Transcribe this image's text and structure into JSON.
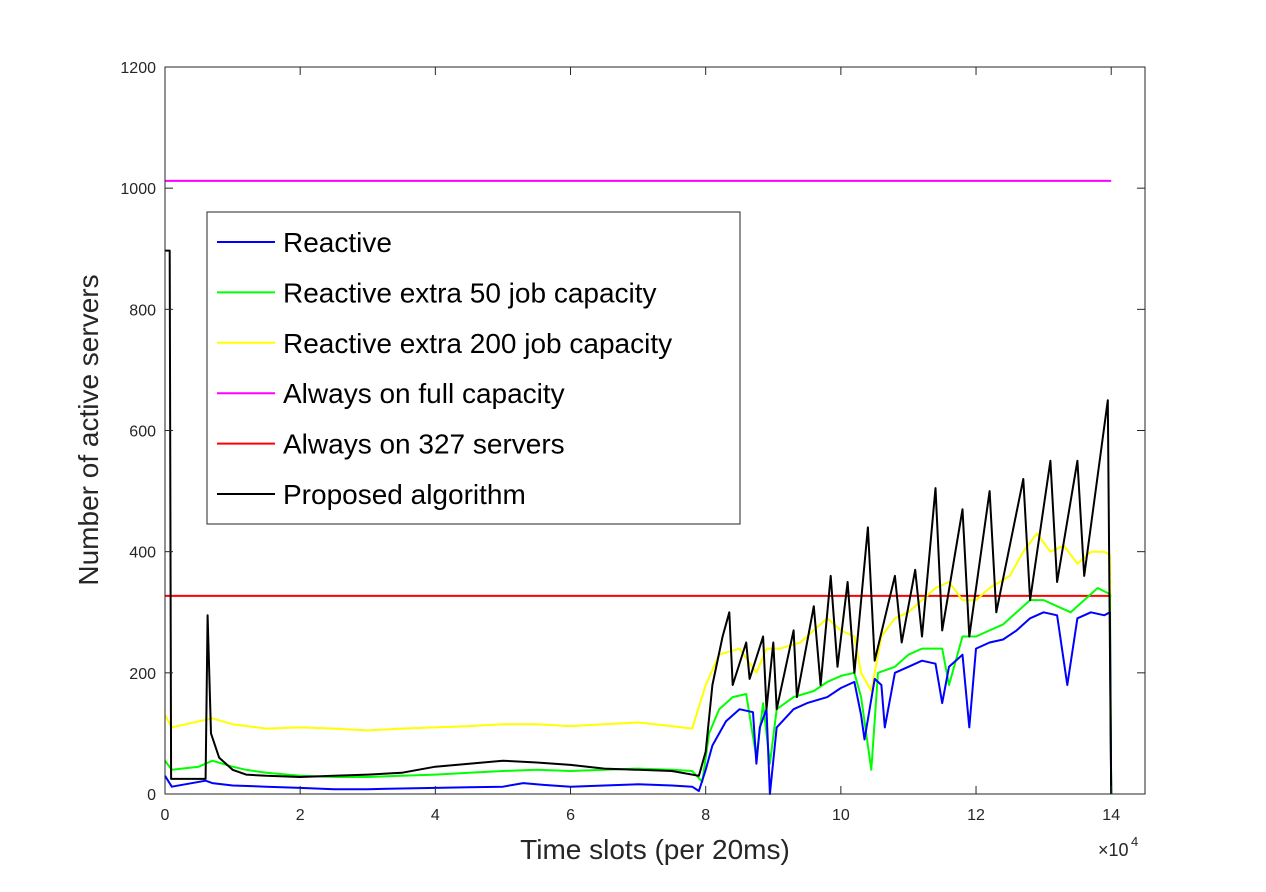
{
  "chart_data": {
    "type": "line",
    "title": "",
    "xlabel": "Time slots (per 20ms)",
    "ylabel": "Number of active servers",
    "x_multiplier_label": "×10",
    "x_multiplier_exp": "4",
    "xlim": [
      0,
      14.5
    ],
    "ylim": [
      0,
      1200
    ],
    "xticks": [
      0,
      2,
      4,
      6,
      8,
      10,
      12,
      14
    ],
    "xtick_labels": [
      "0",
      "2",
      "4",
      "6",
      "8",
      "10",
      "12",
      "14"
    ],
    "yticks": [
      0,
      200,
      400,
      600,
      800,
      1000,
      1200
    ],
    "ytick_labels": [
      "0",
      "200",
      "400",
      "600",
      "800",
      "1000",
      "1200"
    ],
    "grid": false,
    "legend_position": "top-left",
    "x_units_note": "x in units of 10^4 time slots",
    "series": [
      {
        "name": "Reactive",
        "color": "#0000ff",
        "points": [
          [
            0,
            30
          ],
          [
            0.1,
            12
          ],
          [
            0.6,
            22
          ],
          [
            0.7,
            18
          ],
          [
            1,
            14
          ],
          [
            1.5,
            12
          ],
          [
            2,
            10
          ],
          [
            2.5,
            8
          ],
          [
            3,
            8
          ],
          [
            3.5,
            9
          ],
          [
            4,
            10
          ],
          [
            4.5,
            11
          ],
          [
            5,
            12
          ],
          [
            5.3,
            18
          ],
          [
            5.6,
            15
          ],
          [
            6,
            12
          ],
          [
            6.5,
            14
          ],
          [
            7,
            16
          ],
          [
            7.5,
            14
          ],
          [
            7.8,
            12
          ],
          [
            7.9,
            5
          ],
          [
            8.0,
            40
          ],
          [
            8.1,
            80
          ],
          [
            8.3,
            120
          ],
          [
            8.5,
            140
          ],
          [
            8.7,
            135
          ],
          [
            8.75,
            50
          ],
          [
            8.8,
            110
          ],
          [
            8.9,
            140
          ],
          [
            8.95,
            0
          ],
          [
            9.05,
            110
          ],
          [
            9.3,
            140
          ],
          [
            9.5,
            150
          ],
          [
            9.8,
            160
          ],
          [
            10,
            175
          ],
          [
            10.2,
            185
          ],
          [
            10.3,
            130
          ],
          [
            10.35,
            90
          ],
          [
            10.5,
            190
          ],
          [
            10.6,
            180
          ],
          [
            10.65,
            110
          ],
          [
            10.8,
            200
          ],
          [
            11,
            210
          ],
          [
            11.2,
            220
          ],
          [
            11.4,
            215
          ],
          [
            11.5,
            150
          ],
          [
            11.6,
            210
          ],
          [
            11.8,
            230
          ],
          [
            11.9,
            110
          ],
          [
            12,
            240
          ],
          [
            12.2,
            250
          ],
          [
            12.4,
            255
          ],
          [
            12.6,
            270
          ],
          [
            12.8,
            290
          ],
          [
            13,
            300
          ],
          [
            13.2,
            295
          ],
          [
            13.35,
            180
          ],
          [
            13.5,
            290
          ],
          [
            13.7,
            300
          ],
          [
            13.9,
            295
          ],
          [
            13.98,
            300
          ],
          [
            14.0,
            0
          ]
        ]
      },
      {
        "name": "Reactive extra 50 job capacity",
        "color": "#00ff00",
        "points": [
          [
            0,
            55
          ],
          [
            0.1,
            40
          ],
          [
            0.5,
            45
          ],
          [
            0.7,
            55
          ],
          [
            1,
            45
          ],
          [
            1.2,
            40
          ],
          [
            1.5,
            35
          ],
          [
            2,
            30
          ],
          [
            2.5,
            28
          ],
          [
            3,
            28
          ],
          [
            3.5,
            30
          ],
          [
            4,
            32
          ],
          [
            4.5,
            35
          ],
          [
            5,
            38
          ],
          [
            5.5,
            40
          ],
          [
            6,
            38
          ],
          [
            6.5,
            40
          ],
          [
            7,
            42
          ],
          [
            7.5,
            40
          ],
          [
            7.8,
            38
          ],
          [
            7.95,
            20
          ],
          [
            8.05,
            100
          ],
          [
            8.2,
            140
          ],
          [
            8.4,
            160
          ],
          [
            8.6,
            165
          ],
          [
            8.75,
            60
          ],
          [
            8.85,
            150
          ],
          [
            8.95,
            50
          ],
          [
            9.05,
            140
          ],
          [
            9.3,
            160
          ],
          [
            9.6,
            170
          ],
          [
            9.8,
            185
          ],
          [
            10,
            195
          ],
          [
            10.2,
            200
          ],
          [
            10.3,
            160
          ],
          [
            10.45,
            40
          ],
          [
            10.55,
            200
          ],
          [
            10.8,
            210
          ],
          [
            11,
            230
          ],
          [
            11.2,
            240
          ],
          [
            11.5,
            240
          ],
          [
            11.6,
            180
          ],
          [
            11.8,
            260
          ],
          [
            12,
            260
          ],
          [
            12.2,
            270
          ],
          [
            12.4,
            280
          ],
          [
            12.6,
            300
          ],
          [
            12.8,
            320
          ],
          [
            13,
            320
          ],
          [
            13.2,
            310
          ],
          [
            13.4,
            300
          ],
          [
            13.6,
            320
          ],
          [
            13.8,
            340
          ],
          [
            13.98,
            330
          ],
          [
            14.0,
            0
          ]
        ]
      },
      {
        "name": "Reactive extra 200 job capacity",
        "color": "#ffff00",
        "points": [
          [
            0,
            130
          ],
          [
            0.1,
            110
          ],
          [
            0.5,
            120
          ],
          [
            0.7,
            125
          ],
          [
            1,
            115
          ],
          [
            1.5,
            108
          ],
          [
            2,
            110
          ],
          [
            2.5,
            108
          ],
          [
            3,
            105
          ],
          [
            3.5,
            108
          ],
          [
            4,
            110
          ],
          [
            4.5,
            112
          ],
          [
            5,
            115
          ],
          [
            5.5,
            115
          ],
          [
            6,
            112
          ],
          [
            6.5,
            115
          ],
          [
            7,
            118
          ],
          [
            7.5,
            112
          ],
          [
            7.8,
            108
          ],
          [
            8.0,
            180
          ],
          [
            8.2,
            230
          ],
          [
            8.5,
            240
          ],
          [
            8.75,
            200
          ],
          [
            8.9,
            240
          ],
          [
            9.1,
            240
          ],
          [
            9.4,
            250
          ],
          [
            9.6,
            270
          ],
          [
            9.8,
            290
          ],
          [
            10,
            270
          ],
          [
            10.2,
            260
          ],
          [
            10.3,
            200
          ],
          [
            10.45,
            170
          ],
          [
            10.6,
            260
          ],
          [
            10.8,
            290
          ],
          [
            11,
            300
          ],
          [
            11.2,
            320
          ],
          [
            11.4,
            340
          ],
          [
            11.6,
            350
          ],
          [
            11.8,
            320
          ],
          [
            12,
            320
          ],
          [
            12.2,
            340
          ],
          [
            12.5,
            360
          ],
          [
            12.7,
            400
          ],
          [
            12.9,
            430
          ],
          [
            13.1,
            400
          ],
          [
            13.3,
            410
          ],
          [
            13.5,
            380
          ],
          [
            13.7,
            400
          ],
          [
            13.9,
            400
          ],
          [
            13.98,
            395
          ],
          [
            14.0,
            0
          ]
        ]
      },
      {
        "name": "Always on full capacity",
        "color": "#ff00ff",
        "points": [
          [
            0,
            1012
          ],
          [
            14,
            1012
          ]
        ]
      },
      {
        "name": "Always on 327 servers",
        "color": "#ff0000",
        "points": [
          [
            0,
            327
          ],
          [
            14,
            327
          ]
        ]
      },
      {
        "name": "Proposed algorithm",
        "color": "#000000",
        "points": [
          [
            0,
            897
          ],
          [
            0.07,
            897
          ],
          [
            0.09,
            25
          ],
          [
            0.6,
            25
          ],
          [
            0.63,
            295
          ],
          [
            0.68,
            100
          ],
          [
            0.8,
            60
          ],
          [
            1,
            40
          ],
          [
            1.2,
            32
          ],
          [
            1.5,
            30
          ],
          [
            2,
            28
          ],
          [
            2.5,
            30
          ],
          [
            3,
            32
          ],
          [
            3.5,
            35
          ],
          [
            4,
            45
          ],
          [
            4.5,
            50
          ],
          [
            5,
            55
          ],
          [
            5.5,
            52
          ],
          [
            6,
            48
          ],
          [
            6.5,
            42
          ],
          [
            7,
            40
          ],
          [
            7.5,
            38
          ],
          [
            7.9,
            30
          ],
          [
            8.0,
            70
          ],
          [
            8.1,
            180
          ],
          [
            8.25,
            260
          ],
          [
            8.35,
            300
          ],
          [
            8.4,
            180
          ],
          [
            8.6,
            250
          ],
          [
            8.65,
            190
          ],
          [
            8.85,
            260
          ],
          [
            8.9,
            140
          ],
          [
            9.0,
            250
          ],
          [
            9.05,
            140
          ],
          [
            9.3,
            270
          ],
          [
            9.35,
            160
          ],
          [
            9.6,
            310
          ],
          [
            9.7,
            180
          ],
          [
            9.85,
            360
          ],
          [
            9.95,
            210
          ],
          [
            10.1,
            350
          ],
          [
            10.2,
            200
          ],
          [
            10.4,
            440
          ],
          [
            10.5,
            220
          ],
          [
            10.8,
            360
          ],
          [
            10.9,
            250
          ],
          [
            11.1,
            370
          ],
          [
            11.2,
            260
          ],
          [
            11.4,
            505
          ],
          [
            11.5,
            270
          ],
          [
            11.8,
            470
          ],
          [
            11.9,
            260
          ],
          [
            12.2,
            500
          ],
          [
            12.3,
            300
          ],
          [
            12.7,
            520
          ],
          [
            12.8,
            320
          ],
          [
            13.1,
            550
          ],
          [
            13.2,
            350
          ],
          [
            13.5,
            550
          ],
          [
            13.6,
            360
          ],
          [
            13.95,
            650
          ],
          [
            14.0,
            0
          ]
        ]
      }
    ]
  }
}
